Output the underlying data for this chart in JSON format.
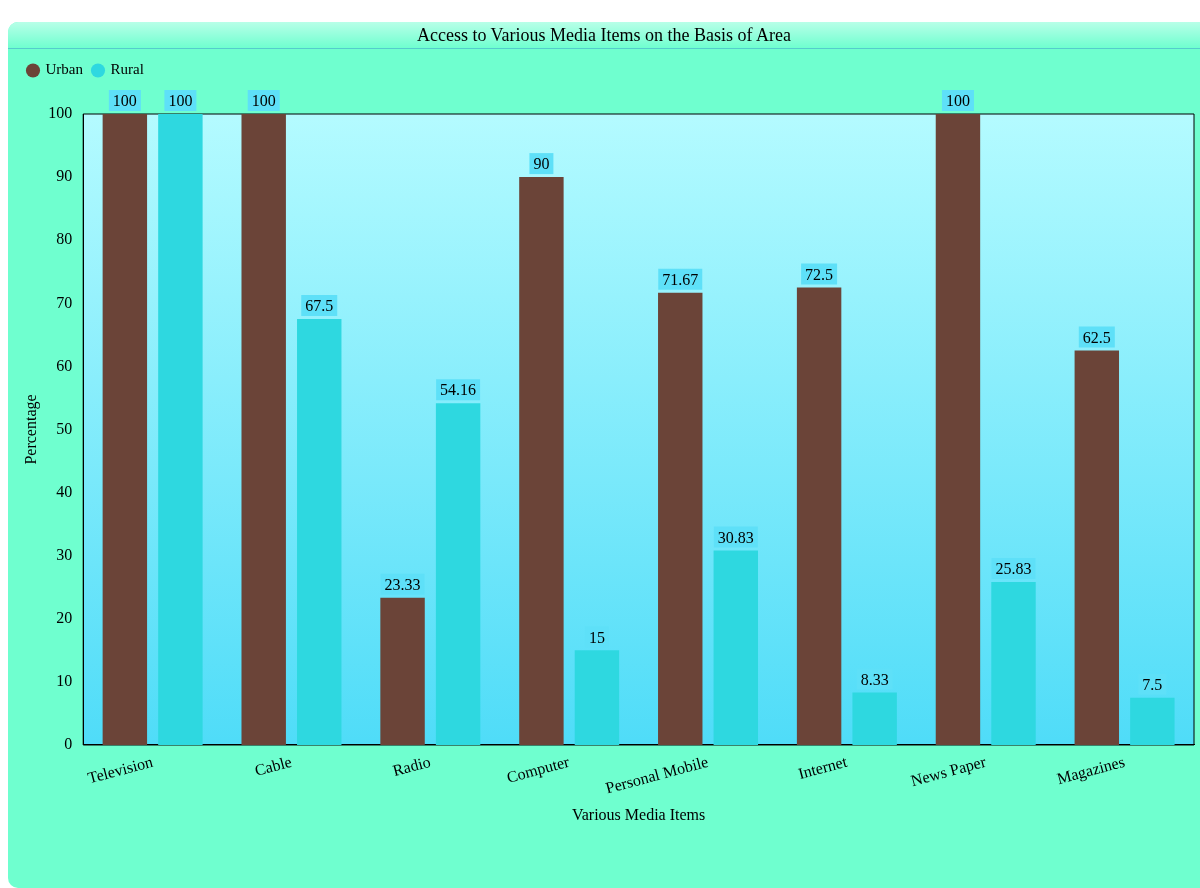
{
  "chart_data": {
    "type": "bar",
    "title": "Access to Various Media Items on the Basis of Area",
    "xlabel": "Various Media Items",
    "ylabel": "Percentage",
    "categories": [
      "Television",
      "Cable",
      "Radio",
      "Computer",
      "Personal Mobile",
      "Internet",
      "News Paper",
      "Magazines"
    ],
    "series": [
      {
        "name": "Urban",
        "color": "#6b4438",
        "values": [
          100,
          100,
          23.33,
          90,
          71.67,
          72.5,
          100,
          62.5
        ]
      },
      {
        "name": "Rural",
        "color": "#2ed8e0",
        "values": [
          100,
          67.5,
          54.16,
          15,
          30.83,
          8.33,
          25.83,
          7.5
        ]
      }
    ],
    "ylim": [
      0,
      100
    ],
    "yticks": [
      0,
      10,
      20,
      30,
      40,
      50,
      60,
      70,
      80,
      90,
      100
    ],
    "legend": "top left",
    "data_labels": true,
    "grid": false
  }
}
